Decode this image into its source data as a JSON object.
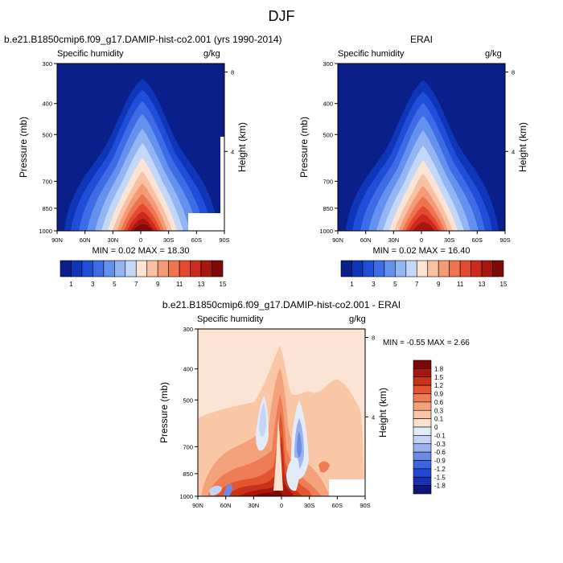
{
  "figure": {
    "season": "DJF"
  },
  "colors": {
    "main_scale": [
      "#0a1f8a",
      "#0f35b8",
      "#1f4ed8",
      "#3d6ce6",
      "#6391ee",
      "#93b6f3",
      "#c3d8f8",
      "#fbe4d4",
      "#f9c1a3",
      "#f59a76",
      "#ee734f",
      "#e34a2e",
      "#cc2a1c",
      "#a8170f",
      "#7d0a06"
    ],
    "diff_scale": [
      "#0d1777",
      "#1b2fb5",
      "#2247d4",
      "#3f64e0",
      "#6c8be7",
      "#9cb2ef",
      "#c6d4f4",
      "#e2ecf9",
      "#fde3cf",
      "#f9c6a6",
      "#f4a27b",
      "#ee7c54",
      "#e3552f",
      "#c8321b",
      "#a5180e",
      "#7c0704"
    ]
  },
  "chart_data": [
    {
      "type": "heatmap",
      "title": "b.e21.B1850cmip6.f09_g17.DAMIP-hist-co2.001 (yrs 1990-2014)",
      "left_label": "Specific humidity",
      "right_label": "g/kg",
      "ylabel": "Pressure (mb)",
      "y2label": "Height (km)",
      "x_ticks": [
        "90N",
        "60N",
        "30N",
        "0",
        "30S",
        "60S",
        "90S"
      ],
      "y_ticks": [
        "300",
        "400",
        "500",
        "700",
        "850",
        "1000"
      ],
      "y2_ticks": [
        "8",
        "4"
      ],
      "stats": "MIN =   0.02  MAX =  18.30",
      "min": 0.02,
      "max": 18.3,
      "colorbar": {
        "labels": [
          "1",
          "3",
          "5",
          "7",
          "9",
          "11",
          "13",
          "15"
        ],
        "levels": [
          1,
          2,
          3,
          4,
          5,
          6,
          7,
          8,
          9,
          10,
          11,
          12,
          13,
          14,
          15
        ]
      }
    },
    {
      "type": "heatmap",
      "title": "ERAI",
      "left_label": "Specific humidity",
      "right_label": "g/kg",
      "ylabel": "Pressure (mb)",
      "y2label": "Height (km)",
      "x_ticks": [
        "90N",
        "60N",
        "30N",
        "0",
        "30S",
        "60S",
        "90S"
      ],
      "y_ticks": [
        "300",
        "400",
        "500",
        "700",
        "850",
        "1000"
      ],
      "y2_ticks": [
        "8",
        "4"
      ],
      "stats": "MIN =   0.02  MAX =  16.40",
      "min": 0.02,
      "max": 16.4,
      "colorbar": {
        "labels": [
          "1",
          "3",
          "5",
          "7",
          "9",
          "11",
          "13",
          "15"
        ],
        "levels": [
          1,
          2,
          3,
          4,
          5,
          6,
          7,
          8,
          9,
          10,
          11,
          12,
          13,
          14,
          15
        ]
      }
    },
    {
      "type": "heatmap",
      "title": "b.e21.B1850cmip6.f09_g17.DAMIP-hist-co2.001 - ERAI",
      "left_label": "Specific humidity",
      "right_label": "g/kg",
      "ylabel": "Pressure (mb)",
      "y2label": "Height (km)",
      "x_ticks": [
        "90N",
        "60N",
        "30N",
        "0",
        "30S",
        "60S",
        "90S"
      ],
      "y_ticks": [
        "300",
        "400",
        "500",
        "700",
        "850",
        "1000"
      ],
      "y2_ticks": [
        "8",
        "4"
      ],
      "stats": "MIN =  -0.55  MAX =   2.66",
      "min": -0.55,
      "max": 2.66,
      "colorbar": {
        "labels": [
          "1.8",
          "1.5",
          "1.2",
          "0.9",
          "0.6",
          "0.3",
          "0.1",
          "0",
          "-0.1",
          "-0.3",
          "-0.6",
          "-0.9",
          "-1.2",
          "-1.5",
          "-1.8"
        ],
        "levels": [
          -1.8,
          -1.5,
          -1.2,
          -0.9,
          -0.6,
          -0.3,
          -0.1,
          0,
          0.1,
          0.3,
          0.6,
          0.9,
          1.2,
          1.5,
          1.8
        ]
      }
    }
  ]
}
